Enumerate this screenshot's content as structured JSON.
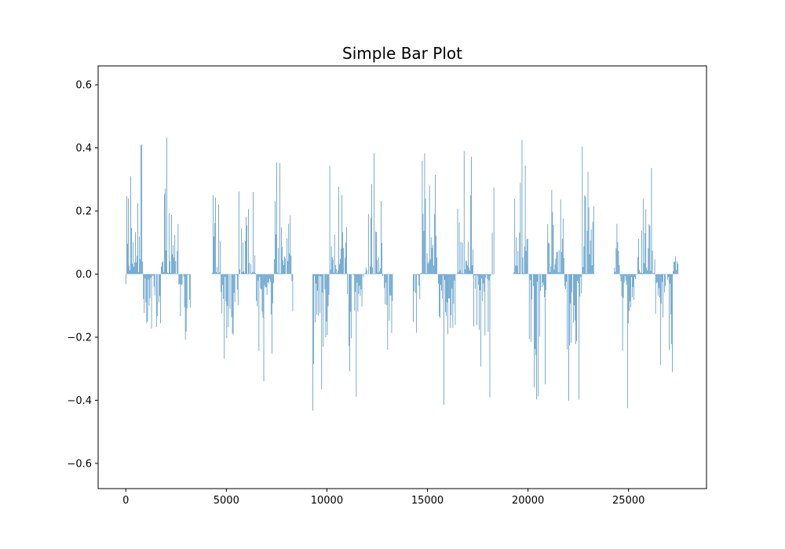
{
  "chart_data": {
    "type": "bar",
    "title": "Simple Bar Plot",
    "xlabel": "",
    "ylabel": "",
    "xlim": [
      -1375,
      28875
    ],
    "ylim": [
      -0.68,
      0.66
    ],
    "xticks": [
      0,
      5000,
      10000,
      15000,
      20000,
      25000
    ],
    "xtick_labels": [
      "0",
      "5000",
      "10000",
      "15000",
      "20000",
      "25000"
    ],
    "yticks": [
      -0.6,
      -0.4,
      -0.2,
      0.0,
      0.2,
      0.4,
      0.6
    ],
    "ytick_labels": [
      "−0.6",
      "−0.4",
      "−0.2",
      "0.0",
      "0.2",
      "0.4",
      "0.6"
    ],
    "grid": false,
    "bar_color": "#1f77b4",
    "bar_width": 20,
    "bar_step": 40,
    "segments": [
      {
        "x_start": 0,
        "x_end": 3200,
        "peak_high": 0.46,
        "peak_low": -0.31
      },
      {
        "x_start": 4300,
        "x_end": 8300,
        "peak_high": 0.39,
        "peak_low": -0.39
      },
      {
        "x_start": 9300,
        "x_end": 13300,
        "peak_high": 0.45,
        "peak_low": -0.44
      },
      {
        "x_start": 14300,
        "x_end": 18300,
        "peak_high": 0.42,
        "peak_low": -0.44
      },
      {
        "x_start": 19300,
        "x_end": 23300,
        "peak_high": 0.45,
        "peak_low": -0.42
      },
      {
        "x_start": 24300,
        "x_end": 27500,
        "peak_high": 0.42,
        "peak_low": -0.43
      }
    ]
  }
}
